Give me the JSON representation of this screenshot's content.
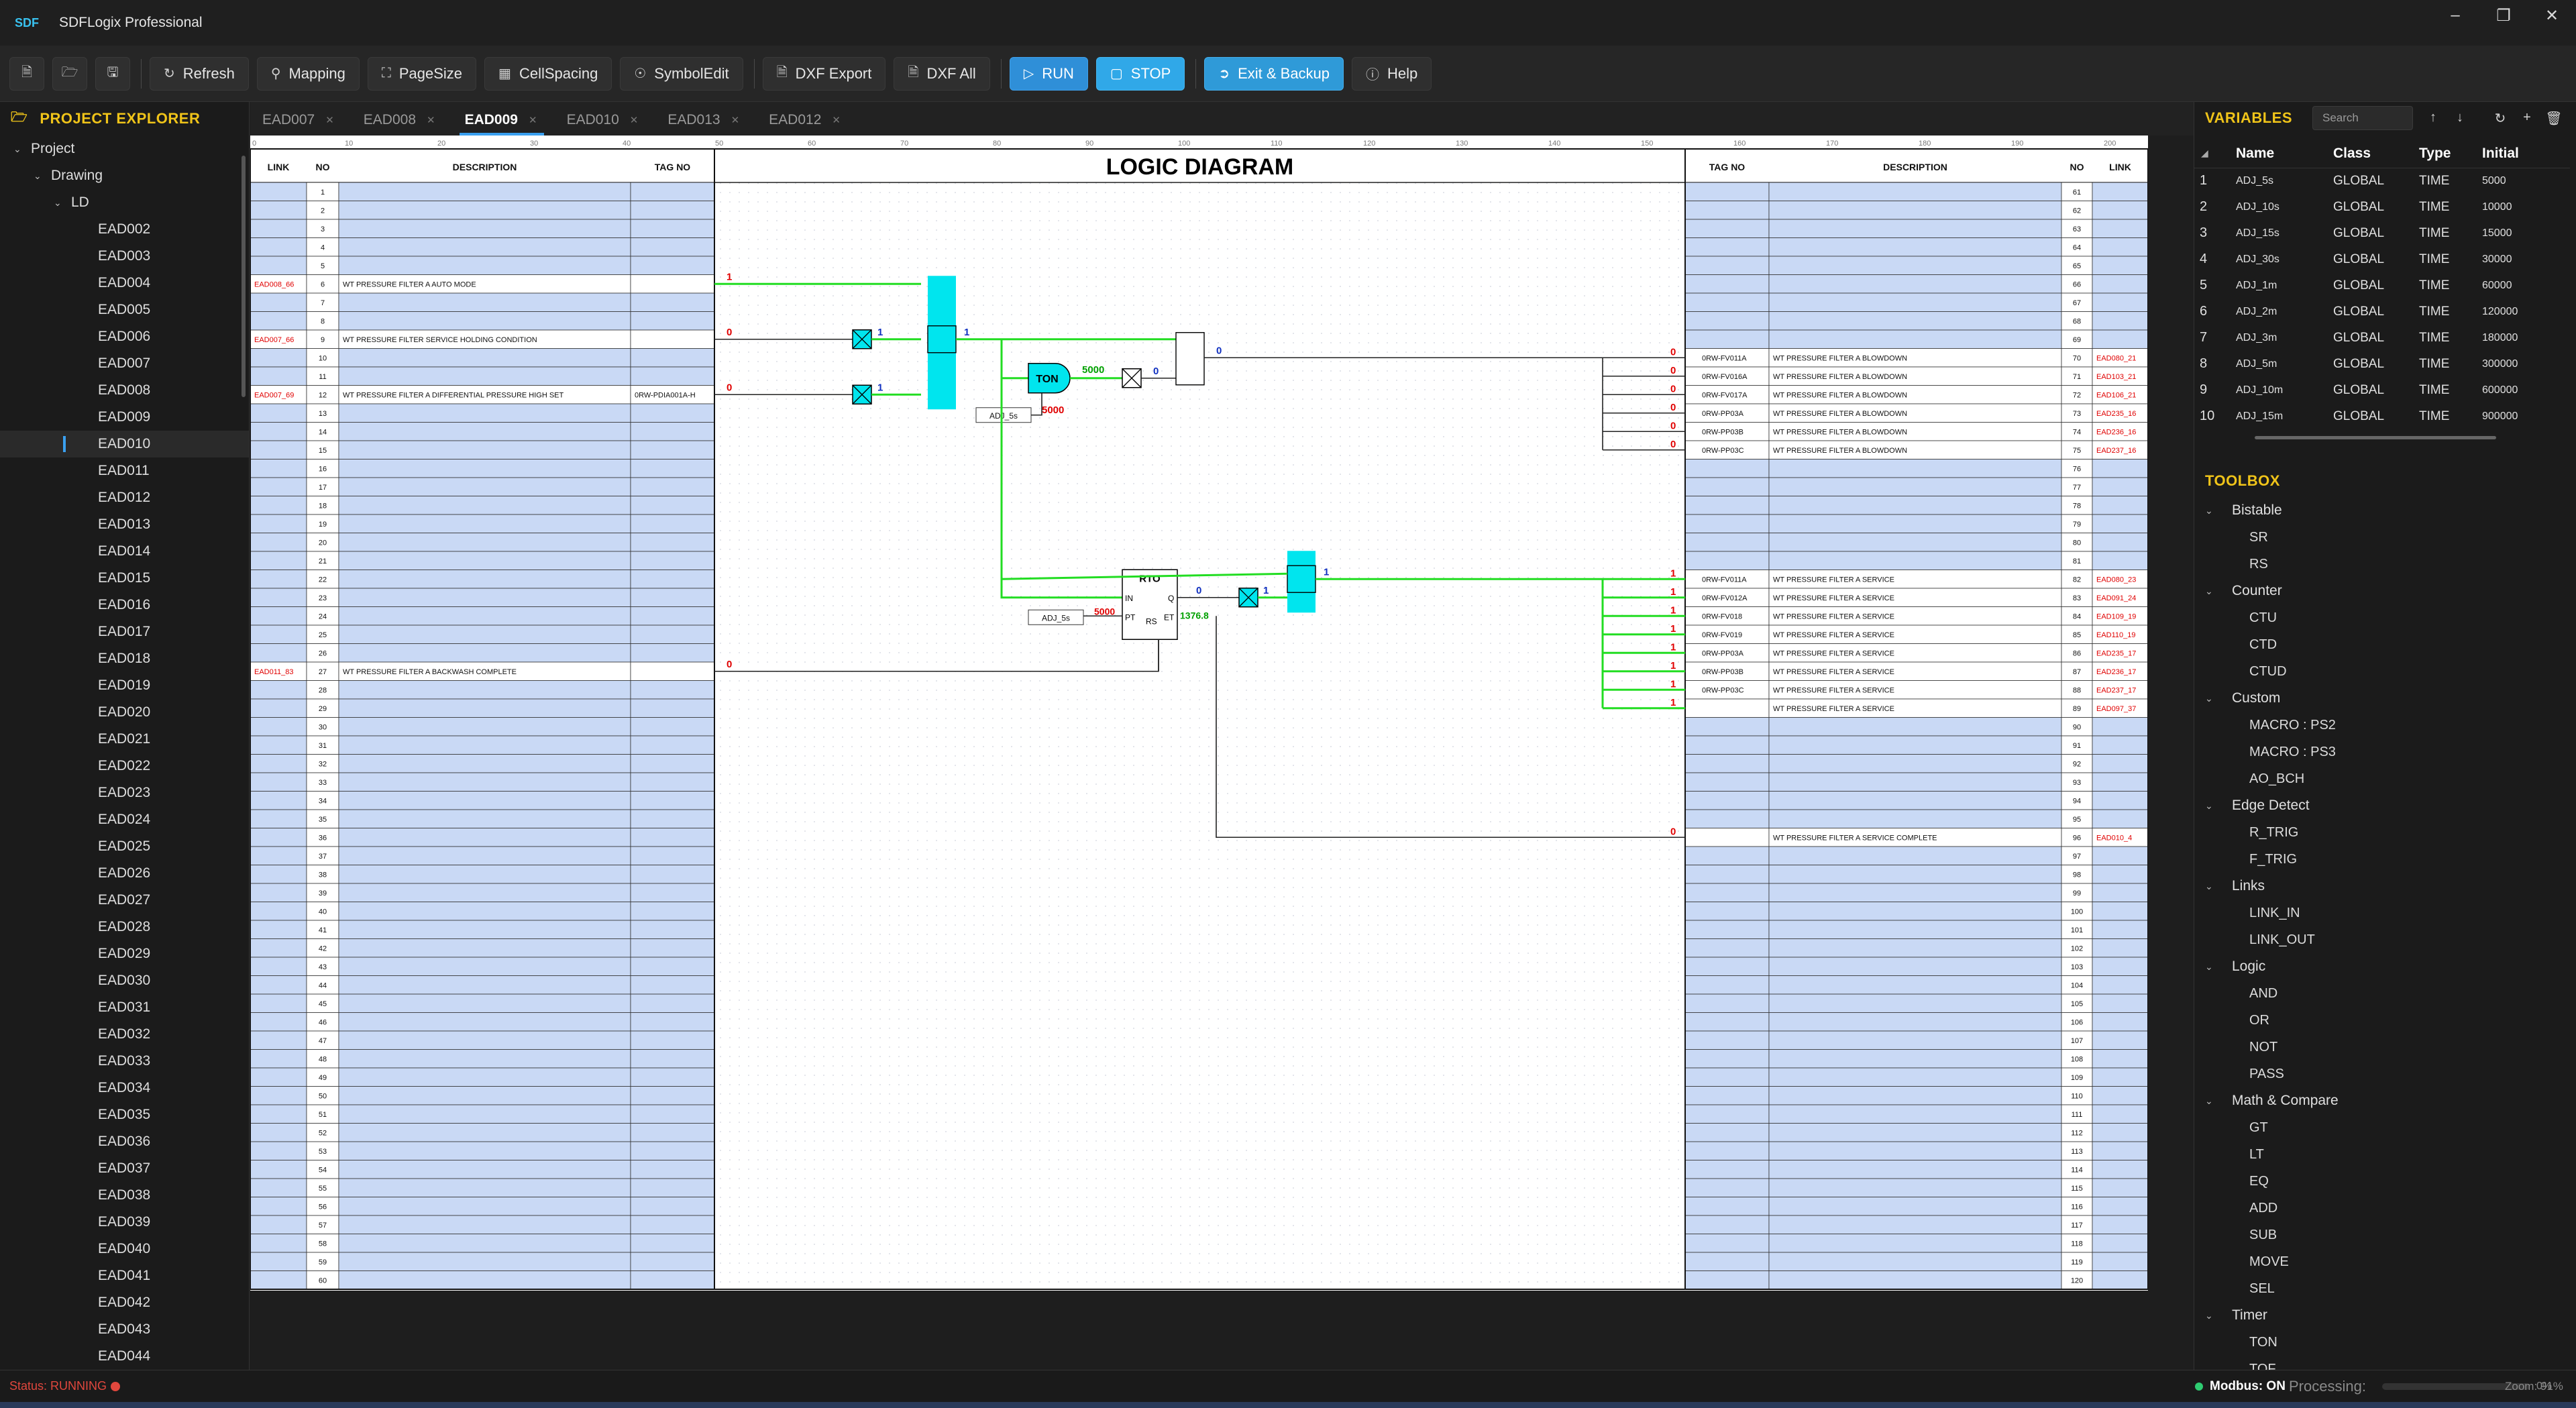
{
  "titlebar": {
    "logo": "SDF",
    "title": "SDFLogix Professional"
  },
  "toolbar": {
    "refresh": "Refresh",
    "mapping": "Mapping",
    "pagesize": "PageSize",
    "cellspacing": "CellSpacing",
    "symboledit": "SymbolEdit",
    "dxf_export": "DXF Export",
    "dxf_all": "DXF All",
    "run": "RUN",
    "stop": "STOP",
    "exit_backup": "Exit & Backup",
    "help": "Help"
  },
  "explorer": {
    "title": "PROJECT EXPLORER",
    "root": "Project",
    "drawing": "Drawing",
    "ld": "LD",
    "active": "EAD010",
    "docs": [
      "EAD002",
      "EAD003",
      "EAD004",
      "EAD005",
      "EAD006",
      "EAD007",
      "EAD008",
      "EAD009",
      "EAD010",
      "EAD011",
      "EAD012",
      "EAD013",
      "EAD014",
      "EAD015",
      "EAD016",
      "EAD017",
      "EAD018",
      "EAD019",
      "EAD020",
      "EAD021",
      "EAD022",
      "EAD023",
      "EAD024",
      "EAD025",
      "EAD026",
      "EAD027",
      "EAD028",
      "EAD029",
      "EAD030",
      "EAD031",
      "EAD032",
      "EAD033",
      "EAD034",
      "EAD035",
      "EAD036",
      "EAD037",
      "EAD038",
      "EAD039",
      "EAD040",
      "EAD041",
      "EAD042",
      "EAD043",
      "EAD044"
    ]
  },
  "doctabs": {
    "active": "EAD009",
    "tabs": [
      "EAD007",
      "EAD008",
      "EAD009",
      "EAD010",
      "EAD013",
      "EAD012"
    ]
  },
  "diagram": {
    "title": "LOGIC DIAGRAM",
    "headers": {
      "left": [
        "LINK",
        "NO",
        "DESCRIPTION",
        "TAG NO"
      ],
      "right": [
        "TAG NO",
        "DESCRIPTION",
        "NO",
        "LINK"
      ]
    },
    "ruler_labels": [
      "0",
      "10",
      "20",
      "30",
      "40",
      "50",
      "60",
      "70",
      "80",
      "90",
      "100",
      "110",
      "120",
      "130",
      "140",
      "150",
      "160",
      "170",
      "180",
      "190",
      "200"
    ],
    "left_rows": [
      {
        "no": 6,
        "link": "EAD008_66",
        "desc": "WT PRESSURE FILTER A AUTO MODE",
        "tag": "",
        "value": "1"
      },
      {
        "no": 9,
        "link": "EAD007_66",
        "desc": "WT PRESSURE FILTER SERVICE HOLDING CONDITION",
        "tag": "",
        "value": "0"
      },
      {
        "no": 12,
        "link": "EAD007_69",
        "desc": "WT PRESSURE FILTER A DIFFERENTIAL PRESSURE HIGH SET",
        "tag": "0RW-PDIA001A-H",
        "value": "0"
      },
      {
        "no": 27,
        "link": "EAD011_83",
        "desc": "WT PRESSURE FILTER A BACKWASH COMPLETE",
        "tag": "",
        "value": "0"
      }
    ],
    "right_rows": [
      {
        "no": 70,
        "tag": "0RW-FV011A",
        "desc": "WT PRESSURE FILTER A BLOWDOWN",
        "link": "EAD080_21",
        "value": "0"
      },
      {
        "no": 71,
        "tag": "0RW-FV016A",
        "desc": "WT PRESSURE FILTER A BLOWDOWN",
        "link": "EAD103_21",
        "value": "0"
      },
      {
        "no": 72,
        "tag": "0RW-FV017A",
        "desc": "WT PRESSURE FILTER A BLOWDOWN",
        "link": "EAD106_21",
        "value": "0"
      },
      {
        "no": 73,
        "tag": "0RW-PP03A",
        "desc": "WT PRESSURE FILTER A BLOWDOWN",
        "link": "EAD235_16",
        "value": "0"
      },
      {
        "no": 74,
        "tag": "0RW-PP03B",
        "desc": "WT PRESSURE FILTER A BLOWDOWN",
        "link": "EAD236_16",
        "value": "0"
      },
      {
        "no": 75,
        "tag": "0RW-PP03C",
        "desc": "WT PRESSURE FILTER A BLOWDOWN",
        "link": "EAD237_16",
        "value": "0"
      },
      {
        "no": 82,
        "tag": "0RW-FV011A",
        "desc": "WT PRESSURE FILTER A SERVICE",
        "link": "EAD080_23",
        "value": "1"
      },
      {
        "no": 83,
        "tag": "0RW-FV012A",
        "desc": "WT PRESSURE FILTER A SERVICE",
        "link": "EAD091_24",
        "value": "1"
      },
      {
        "no": 84,
        "tag": "0RW-FV018",
        "desc": "WT PRESSURE FILTER A SERVICE",
        "link": "EAD109_19",
        "value": "1"
      },
      {
        "no": 85,
        "tag": "0RW-FV019",
        "desc": "WT PRESSURE FILTER A SERVICE",
        "link": "EAD110_19",
        "value": "1"
      },
      {
        "no": 86,
        "tag": "0RW-PP03A",
        "desc": "WT PRESSURE FILTER A SERVICE",
        "link": "EAD235_17",
        "value": "1"
      },
      {
        "no": 87,
        "tag": "0RW-PP03B",
        "desc": "WT PRESSURE FILTER A SERVICE",
        "link": "EAD236_17",
        "value": "1"
      },
      {
        "no": 88,
        "tag": "0RW-PP03C",
        "desc": "WT PRESSURE FILTER A SERVICE",
        "link": "EAD237_17",
        "value": "1"
      },
      {
        "no": 89,
        "tag": "",
        "desc": "WT PRESSURE FILTER A SERVICE",
        "link": "EAD097_37",
        "value": "1"
      },
      {
        "no": 96,
        "tag": "",
        "desc": "WT PRESSURE FILTER A SERVICE COMPLETE",
        "link": "EAD010_4",
        "value": "0"
      }
    ],
    "blocks": {
      "ton_label": "TON",
      "ton_out": "5000",
      "ton_preset": "5000",
      "ton_var": "ADJ_5s",
      "rto_label": "RTO",
      "rto_in": "IN",
      "rto_pt": "PT",
      "rto_rs": "RS",
      "rto_q": "Q",
      "rto_et": "ET",
      "rto_preset": "5000",
      "rto_var": "ADJ_5s",
      "rto_et_value": "1376.8",
      "sig_and_out": "1",
      "sig_x1": "1",
      "sig_x2": "1",
      "sig_not": "0",
      "sig_or_out": "0",
      "sig_rto_q": "0",
      "sig_x3": "1",
      "sig_or2_out": "1"
    }
  },
  "variables": {
    "title": "VARIABLES",
    "search_placeholder": "Search",
    "columns": [
      "Name",
      "Class",
      "Type",
      "Initial"
    ],
    "rows": [
      {
        "idx": "1",
        "name": "ADJ_5s",
        "class": "GLOBAL",
        "type": "TIME",
        "initial": "5000"
      },
      {
        "idx": "2",
        "name": "ADJ_10s",
        "class": "GLOBAL",
        "type": "TIME",
        "initial": "10000"
      },
      {
        "idx": "3",
        "name": "ADJ_15s",
        "class": "GLOBAL",
        "type": "TIME",
        "initial": "15000"
      },
      {
        "idx": "4",
        "name": "ADJ_30s",
        "class": "GLOBAL",
        "type": "TIME",
        "initial": "30000"
      },
      {
        "idx": "5",
        "name": "ADJ_1m",
        "class": "GLOBAL",
        "type": "TIME",
        "initial": "60000"
      },
      {
        "idx": "6",
        "name": "ADJ_2m",
        "class": "GLOBAL",
        "type": "TIME",
        "initial": "120000"
      },
      {
        "idx": "7",
        "name": "ADJ_3m",
        "class": "GLOBAL",
        "type": "TIME",
        "initial": "180000"
      },
      {
        "idx": "8",
        "name": "ADJ_5m",
        "class": "GLOBAL",
        "type": "TIME",
        "initial": "300000"
      },
      {
        "idx": "9",
        "name": "ADJ_10m",
        "class": "GLOBAL",
        "type": "TIME",
        "initial": "600000"
      },
      {
        "idx": "10",
        "name": "ADJ_15m",
        "class": "GLOBAL",
        "type": "TIME",
        "initial": "900000"
      }
    ]
  },
  "toolbox": {
    "title": "TOOLBOX",
    "categories": [
      {
        "name": "Bistable",
        "items": [
          "SR",
          "RS"
        ]
      },
      {
        "name": "Counter",
        "items": [
          "CTU",
          "CTD",
          "CTUD"
        ]
      },
      {
        "name": "Custom",
        "items": [
          "MACRO : PS2",
          "MACRO : PS3",
          "AO_BCH"
        ]
      },
      {
        "name": "Edge Detect",
        "items": [
          "R_TRIG",
          "F_TRIG"
        ]
      },
      {
        "name": "Links",
        "items": [
          "LINK_IN",
          "LINK_OUT"
        ]
      },
      {
        "name": "Logic",
        "items": [
          "AND",
          "OR",
          "NOT",
          "PASS"
        ]
      },
      {
        "name": "Math & Compare",
        "items": [
          "GT",
          "LT",
          "EQ",
          "ADD",
          "SUB",
          "MOVE",
          "SEL"
        ]
      },
      {
        "name": "Timer",
        "items": [
          "TON",
          "TOF"
        ]
      }
    ]
  },
  "statusbar": {
    "status": "Status: RUNNING",
    "modbus": "Modbus: ON",
    "processing_label": "Processing:",
    "processing_pct": "0%",
    "zoom": "Zoom: 91%"
  },
  "colors": {
    "accent": "#3aa0f0",
    "panel_title": "#f0c419",
    "wire_active": "#22dd22",
    "block_active": "#00e5ee",
    "value_red": "#e00000",
    "value_blue": "#1030c0",
    "value_green": "#00a000",
    "row_fill": "#c9d9f5",
    "status_red": "#e0473d"
  }
}
